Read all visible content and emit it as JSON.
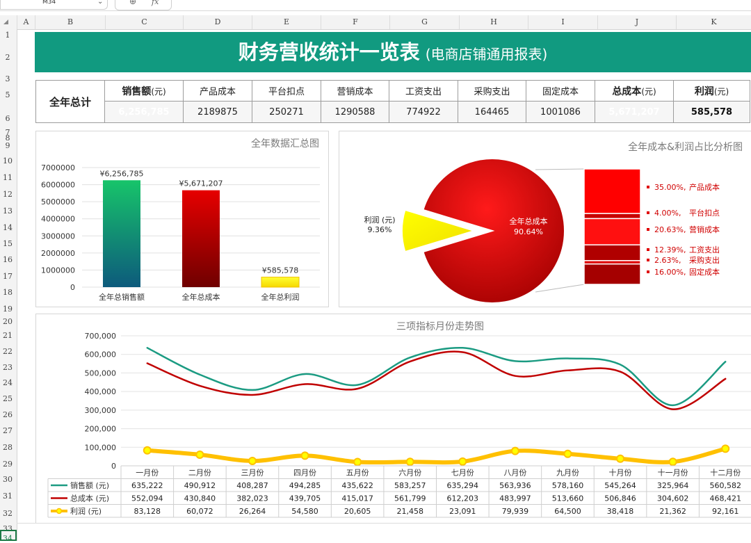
{
  "formula_bar": {
    "name_box": "M34",
    "fx": "fx"
  },
  "columns": [
    "A",
    "B",
    "C",
    "D",
    "E",
    "F",
    "G",
    "H",
    "I",
    "J",
    "K"
  ],
  "rows": [
    "1",
    "2",
    "3",
    "5",
    "6",
    "7",
    "8",
    "9",
    "10",
    "11",
    "12",
    "13",
    "14",
    "15",
    "16",
    "17",
    "18",
    "19",
    "20",
    "21",
    "22",
    "23",
    "24",
    "25",
    "26",
    "27",
    "28",
    "29",
    "30",
    "31",
    "32",
    "33",
    "34"
  ],
  "banner": {
    "title": "财务营收统计一览表",
    "subtitle": "(电商店铺通用报表)"
  },
  "summary": {
    "row_label": "全年总计",
    "headers": [
      {
        "label": "销售额",
        "unit": "(元)"
      },
      {
        "label": "产品成本",
        "unit": ""
      },
      {
        "label": "平台扣点",
        "unit": ""
      },
      {
        "label": "营销成本",
        "unit": ""
      },
      {
        "label": "工资支出",
        "unit": ""
      },
      {
        "label": "采购支出",
        "unit": ""
      },
      {
        "label": "固定成本",
        "unit": ""
      },
      {
        "label": "总成本",
        "unit": "(元)"
      },
      {
        "label": "利润",
        "unit": "(元)"
      }
    ],
    "values": [
      "6,256,785",
      "2189875",
      "250271",
      "1290588",
      "774922",
      "164465",
      "1001086",
      "5,671,207",
      "585,578"
    ]
  },
  "colors": {
    "brand": "#119a80",
    "cost": "#c00000",
    "profit": "#ffff00",
    "sales_line": "#1b9b82",
    "cost_line": "#c00000",
    "profit_line": "#ffc000"
  },
  "chart_data": [
    {
      "type": "bar",
      "title": "全年数据汇总图",
      "categories": [
        "全年总销售额",
        "全年总成本",
        "全年总利润"
      ],
      "values": [
        6256785,
        5671207,
        585578
      ],
      "data_labels": [
        "¥6,256,785",
        "¥5,671,207",
        "¥585,578"
      ],
      "yticks": [
        "0",
        "1000000",
        "2000000",
        "3000000",
        "4000000",
        "5000000",
        "6000000",
        "7000000"
      ],
      "ylim": [
        0,
        7000000
      ],
      "grid": true
    },
    {
      "type": "pie",
      "title": "全年成本&利润占比分析图",
      "slices": [
        {
          "label": "全年总成本",
          "pct_label": "90.64%",
          "value": 90.64
        },
        {
          "label": "利润 (元)",
          "pct_label": "9.36%",
          "value": 9.36
        }
      ],
      "breakdown": [
        {
          "pct": "35.00%,",
          "label": "产品成本",
          "value": 35.0
        },
        {
          "pct": "4.00%,",
          "label": "平台扣点",
          "value": 4.0
        },
        {
          "pct": "20.63%,",
          "label": "营销成本",
          "value": 20.63
        },
        {
          "pct": "12.39%,",
          "label": "工资支出",
          "value": 12.39
        },
        {
          "pct": "2.63%,",
          "label": "采购支出",
          "value": 2.63
        },
        {
          "pct": "16.00%,",
          "label": "固定成本",
          "value": 16.0
        }
      ]
    },
    {
      "type": "line",
      "title": "三项指标月份走势图",
      "categories": [
        "一月份",
        "二月份",
        "三月份",
        "四月份",
        "五月份",
        "六月份",
        "七月份",
        "八月份",
        "九月份",
        "十月份",
        "十一月份",
        "十二月份"
      ],
      "yticks": [
        "0",
        "100,000",
        "200,000",
        "300,000",
        "400,000",
        "500,000",
        "600,000",
        "700,000"
      ],
      "ylim": [
        0,
        700000
      ],
      "grid": true,
      "series": [
        {
          "name": "销售额 (元)",
          "values": [
            635222,
            490912,
            408287,
            494285,
            435622,
            583257,
            635294,
            563936,
            578160,
            545264,
            325964,
            560582
          ],
          "labels": [
            "635,222",
            "490,912",
            "408,287",
            "494,285",
            "435,622",
            "583,257",
            "635,294",
            "563,936",
            "578,160",
            "545,264",
            "325,964",
            "560,582"
          ]
        },
        {
          "name": "总成本 (元)",
          "values": [
            552094,
            430840,
            382023,
            439705,
            415017,
            561799,
            612203,
            483997,
            513660,
            506846,
            304602,
            468421
          ],
          "labels": [
            "552,094",
            "430,840",
            "382,023",
            "439,705",
            "415,017",
            "561,799",
            "612,203",
            "483,997",
            "513,660",
            "506,846",
            "304,602",
            "468,421"
          ]
        },
        {
          "name": "利润 (元)",
          "values": [
            83128,
            60072,
            26264,
            54580,
            20605,
            21458,
            23091,
            79939,
            64500,
            38418,
            21362,
            92161
          ],
          "labels": [
            "83,128",
            "60,072",
            "26,264",
            "54,580",
            "20,605",
            "21,458",
            "23,091",
            "79,939",
            "64,500",
            "38,418",
            "21,362",
            "92,161"
          ]
        }
      ]
    }
  ]
}
